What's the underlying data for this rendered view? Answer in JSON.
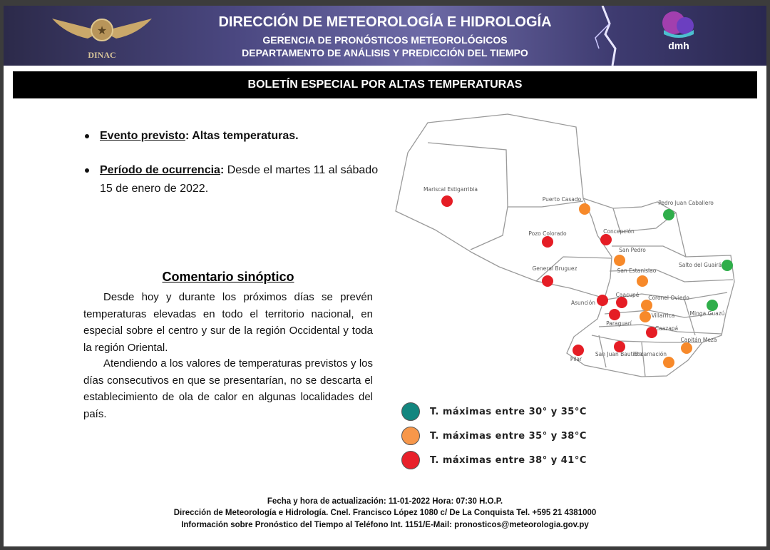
{
  "header": {
    "org_title": "DIRECCIÓN DE METEOROLOGÍA E HIDROLOGÍA",
    "subtitle_1": "GERENCIA DE PRONÓSTICOS METEOROLÓGICOS",
    "subtitle_2": "DEPARTAMENTO DE ANÁLISIS Y PREDICCIÓN DEL TIEMPO",
    "left_logo_text": "DINAC",
    "right_logo_text": "dmh"
  },
  "bulletin_title": "BOLETÍN ESPECIAL POR ALTAS TEMPERATURAS",
  "bullets": [
    {
      "key": "Evento previsto",
      "value": "Altas temperaturas."
    },
    {
      "key": "Período de ocurrencia",
      "value": "Desde el martes 11 al sábado 15 de enero de 2022."
    }
  ],
  "synoptic": {
    "heading": "Comentario sinóptico",
    "paragraphs": [
      "Desde hoy y durante los próximos días se prevén temperaturas elevadas en todo el territorio nacional, en especial sobre el centro y sur de la región Occidental y toda la región Oriental.",
      "Atendiendo a los valores de temperaturas previstos y los días consecutivos en que se presentarían, no se descarta el establecimiento de ola de calor en algunas localidades del país."
    ]
  },
  "legend": [
    {
      "label": "T. máximas entre 30° y 35°C",
      "color": "#13867f",
      "level": "30-35"
    },
    {
      "label": "T. máximas entre 35° y 38°C",
      "color": "#f7974a",
      "level": "35-38"
    },
    {
      "label": "T. máximas entre 38° y 41°C",
      "color": "#e8202a",
      "level": "38-41"
    }
  ],
  "map_colors": {
    "30-35": "#2fae4a",
    "35-38": "#f7892a",
    "38-41": "#e51d25"
  },
  "cities": [
    {
      "name": "Mariscal Estigarribia",
      "level": "38-41"
    },
    {
      "name": "Puerto Casado",
      "level": "35-38"
    },
    {
      "name": "Pedro Juan Caballero",
      "level": "30-35"
    },
    {
      "name": "Concepción",
      "level": "38-41"
    },
    {
      "name": "Pozo Colorado",
      "level": "38-41"
    },
    {
      "name": "San Pedro",
      "level": "35-38"
    },
    {
      "name": "Salto del Guairá",
      "level": "30-35"
    },
    {
      "name": "General Bruguez",
      "level": "38-41"
    },
    {
      "name": "San Estanislao",
      "level": "35-38"
    },
    {
      "name": "Asunción",
      "level": "38-41"
    },
    {
      "name": "Caacupé",
      "level": "38-41"
    },
    {
      "name": "Coronel Oviedo",
      "level": "35-38"
    },
    {
      "name": "Minga Guazú",
      "level": "30-35"
    },
    {
      "name": "Villarrica",
      "level": "35-38"
    },
    {
      "name": "Paraguarí",
      "level": "38-41"
    },
    {
      "name": "Caazapá",
      "level": "38-41"
    },
    {
      "name": "Capitán Meza",
      "level": "35-38"
    },
    {
      "name": "San Juan Bautista",
      "level": "38-41"
    },
    {
      "name": "Pilar",
      "level": "38-41"
    },
    {
      "name": "Encarnación",
      "level": "35-38"
    }
  ],
  "footer": {
    "updated": "Fecha y hora de actualización: 11-01-2022 Hora: 07:30 H.O.P.",
    "address": "Dirección de Meteorología e Hidrología. Cnel. Francisco López 1080 c/ De La Conquista Tel. +595 21 4381000",
    "contact": "Información sobre Pronóstico del Tiempo al Teléfono Int. 1151/E-Mail: pronosticos@meteorologia.gov.py"
  }
}
